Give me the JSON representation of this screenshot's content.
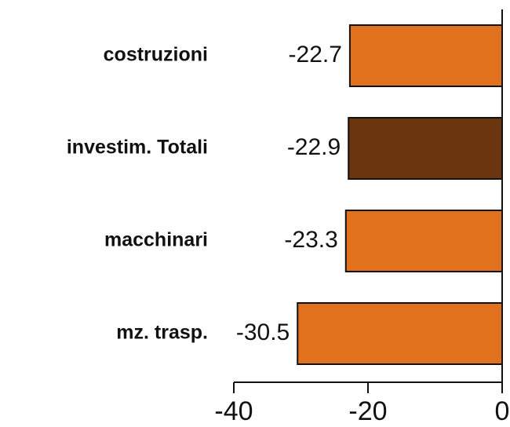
{
  "chart_data": {
    "type": "barh",
    "categories": [
      "costruzioni",
      "investim. Totali",
      "macchinari",
      "mz. trasp."
    ],
    "values": [
      -22.7,
      -22.9,
      -23.3,
      -30.5
    ],
    "colors": [
      "#e2711d",
      "#6b350f",
      "#e2711d",
      "#e2711d"
    ],
    "xlim": [
      -40,
      0
    ],
    "xticks": [
      -40,
      -20,
      0
    ]
  }
}
